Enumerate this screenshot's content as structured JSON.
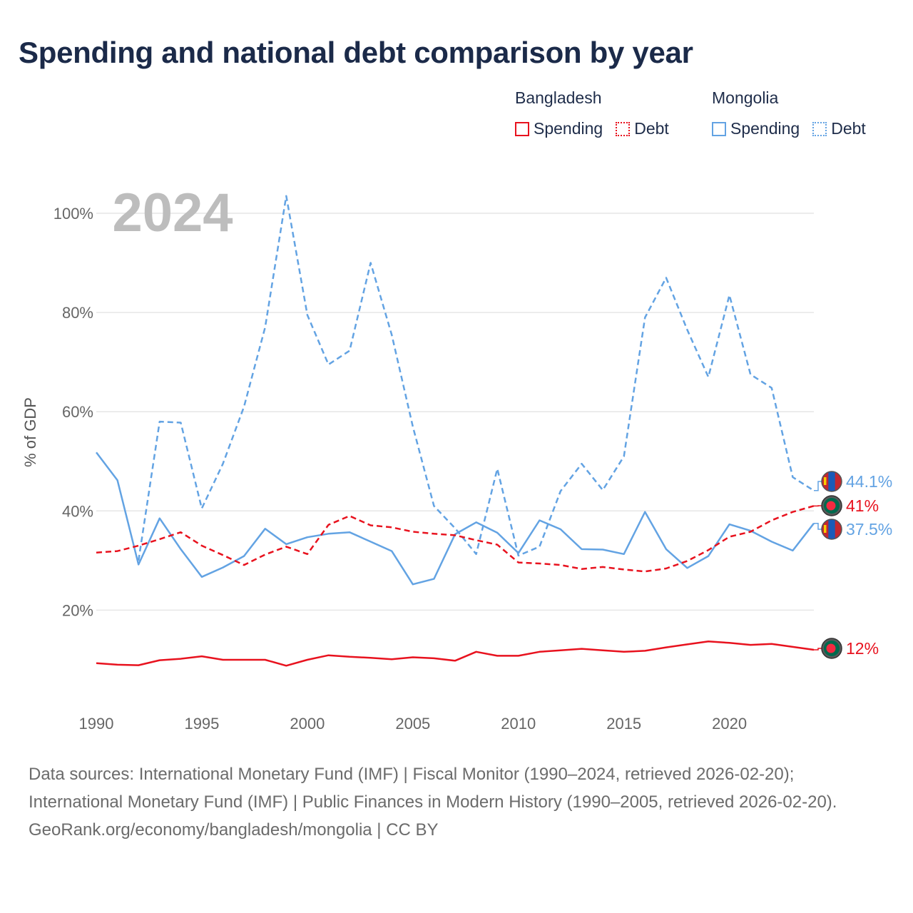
{
  "title": "Spending and national debt comparison by year",
  "legend": {
    "groups": [
      {
        "name": "Bangladesh",
        "color": "#e8121e",
        "items": [
          {
            "label": "Spending",
            "style": "solid"
          },
          {
            "label": "Debt",
            "style": "dotted"
          }
        ]
      },
      {
        "name": "Mongolia",
        "color": "#63a3e3",
        "items": [
          {
            "label": "Spending",
            "style": "solid"
          },
          {
            "label": "Debt",
            "style": "dotted"
          }
        ]
      }
    ]
  },
  "chart_data": {
    "type": "line",
    "year_label": "2024",
    "ylabel": "% of GDP",
    "xlabel": "",
    "xlim": [
      1990,
      2024
    ],
    "ylim": [
      0,
      105
    ],
    "grid": true,
    "x_ticks": [
      1990,
      1995,
      2000,
      2005,
      2010,
      2015,
      2020
    ],
    "y_ticks": [
      {
        "value": 20,
        "label": "20%"
      },
      {
        "value": 40,
        "label": "40%"
      },
      {
        "value": 60,
        "label": "60%"
      },
      {
        "value": 80,
        "label": "80%"
      },
      {
        "value": 100,
        "label": "100%"
      }
    ],
    "x": [
      1990,
      1991,
      1992,
      1993,
      1994,
      1995,
      1996,
      1997,
      1998,
      1999,
      2000,
      2001,
      2002,
      2003,
      2004,
      2005,
      2006,
      2007,
      2008,
      2009,
      2010,
      2011,
      2012,
      2013,
      2014,
      2015,
      2016,
      2017,
      2018,
      2019,
      2020,
      2021,
      2022,
      2023,
      2024
    ],
    "series": [
      {
        "name": "Mongolia Debt",
        "country": "Mongolia",
        "measure": "Debt",
        "color": "#63a3e3",
        "dash": "dashed",
        "end_label": "44.1%",
        "end_marker": "mongolia-flag",
        "values": [
          null,
          null,
          30.0,
          58.0,
          57.8,
          40.5,
          49.5,
          61.0,
          77.0,
          103.5,
          79.5,
          69.5,
          72.3,
          90.0,
          75.5,
          57.0,
          41.0,
          36.5,
          31.3,
          48.5,
          31.0,
          32.8,
          44.0,
          49.5,
          44.2,
          51.0,
          79.0,
          87.0,
          76.5,
          67.0,
          83.5,
          67.5,
          64.8,
          46.8,
          44.1
        ]
      },
      {
        "name": "Mongolia Spending",
        "country": "Mongolia",
        "measure": "Spending",
        "color": "#63a3e3",
        "dash": "solid",
        "end_label": "37.5%",
        "end_marker": "mongolia-flag",
        "values": [
          51.8,
          46.2,
          29.2,
          38.5,
          32.3,
          26.7,
          28.6,
          30.9,
          36.4,
          33.3,
          34.7,
          35.4,
          35.7,
          33.8,
          31.9,
          25.2,
          26.3,
          35.3,
          37.7,
          35.6,
          31.5,
          38.1,
          36.3,
          32.3,
          32.2,
          31.3,
          39.8,
          32.3,
          28.5,
          30.9,
          37.3,
          36.0,
          33.8,
          32.0,
          37.5
        ]
      },
      {
        "name": "Bangladesh Debt",
        "country": "Bangladesh",
        "measure": "Debt",
        "color": "#e8121e",
        "dash": "dashed",
        "end_label": "41%",
        "end_marker": "bangladesh-flag",
        "values": [
          31.6,
          31.9,
          33.0,
          34.3,
          35.7,
          33.0,
          31.1,
          29.1,
          31.2,
          32.8,
          31.3,
          37.2,
          39.0,
          37.1,
          36.7,
          35.8,
          35.4,
          35.1,
          34.1,
          33.2,
          29.6,
          29.4,
          29.1,
          28.3,
          28.7,
          28.2,
          27.8,
          28.4,
          29.9,
          32.1,
          34.8,
          35.8,
          38.1,
          39.8,
          41.0
        ]
      },
      {
        "name": "Bangladesh Spending",
        "country": "Bangladesh",
        "measure": "Spending",
        "color": "#e8121e",
        "dash": "solid",
        "end_label": "12%",
        "end_marker": "bangladesh-flag",
        "values": [
          9.3,
          9.0,
          8.9,
          9.9,
          10.2,
          10.7,
          10.0,
          10.0,
          10.0,
          8.8,
          10.0,
          10.9,
          10.6,
          10.4,
          10.1,
          10.5,
          10.3,
          9.8,
          11.6,
          10.8,
          10.8,
          11.6,
          11.9,
          12.2,
          11.9,
          11.6,
          11.8,
          12.5,
          13.1,
          13.7,
          13.4,
          13.0,
          13.2,
          12.6,
          12.0
        ]
      }
    ]
  },
  "footer": {
    "sources": "Data sources: International Monetary Fund (IMF) | Fiscal Monitor (1990–2024, retrieved 2026-02-20); International Monetary Fund (IMF) | Public Finances in Modern History (1990–2005, retrieved 2026-02-20).",
    "credit": "GeoRank.org/economy/bangladesh/mongolia | CC BY"
  }
}
